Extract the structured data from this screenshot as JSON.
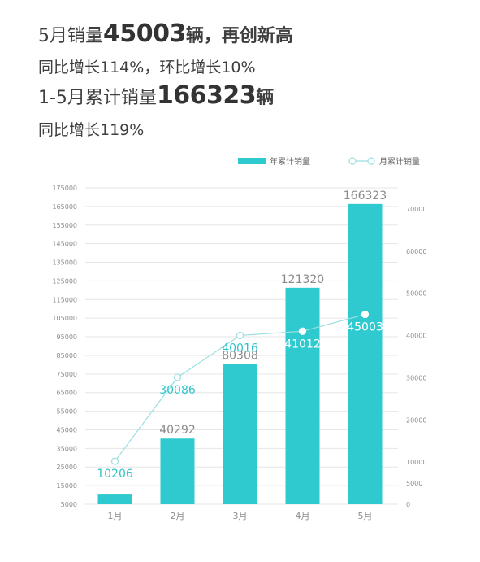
{
  "headline": {
    "line1_prefix": "5月销量",
    "line1_number": "45003",
    "line1_unit": "辆",
    "line1_suffix": "，再创新高",
    "line2": "同比增长114%，环比增长10%",
    "line3_prefix": "1-5月累计销量",
    "line3_number": "166323",
    "line3_unit": "辆",
    "line4": "同比增长119%"
  },
  "colors": {
    "bar": "#2ecad0",
    "line": "#9adfe0",
    "point_label": "#2ec5c8",
    "grid": "#e6e6e6"
  },
  "chart_data": {
    "type": "bar+line",
    "categories": [
      "1月",
      "2月",
      "3月",
      "4月",
      "5月"
    ],
    "series": [
      {
        "name": "年累计销量",
        "type": "bar",
        "axis": "left",
        "values": [
          10206,
          40292,
          80308,
          121320,
          166323
        ],
        "labels": [
          "",
          "40292",
          "80308",
          "121320",
          "166323"
        ]
      },
      {
        "name": "月累计销量",
        "type": "line",
        "axis": "right",
        "values": [
          10206,
          30086,
          40016,
          41012,
          45003
        ],
        "labels": [
          "10206",
          "30086",
          "40016",
          "41012",
          "45003"
        ]
      }
    ],
    "left_axis": {
      "min": 5000,
      "max": 175000,
      "ticks": [
        5000,
        15000,
        25000,
        35000,
        45000,
        55000,
        65000,
        75000,
        85000,
        95000,
        105000,
        115000,
        125000,
        135000,
        145000,
        155000,
        165000,
        175000
      ]
    },
    "right_axis": {
      "min": 0,
      "max": 75000,
      "ticks": [
        0,
        5000,
        10000,
        20000,
        30000,
        40000,
        50000,
        60000,
        70000
      ]
    },
    "legend_position": "top-right",
    "grid": true
  }
}
